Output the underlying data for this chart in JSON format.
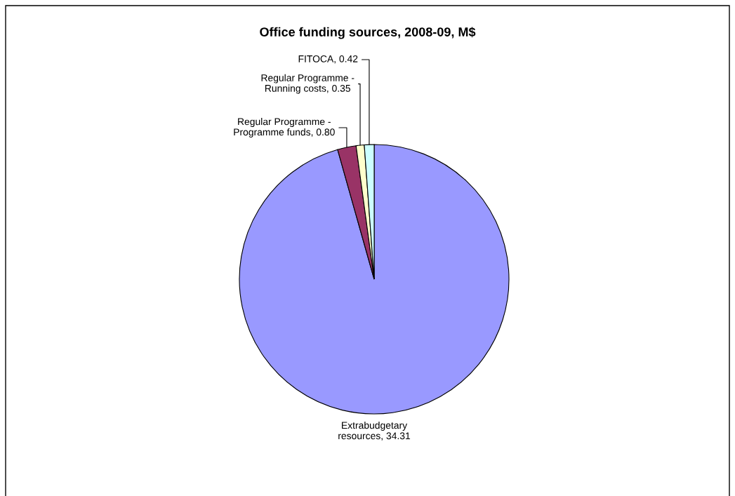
{
  "chart_data": {
    "type": "pie",
    "title": "Office funding sources, 2008-09, M$",
    "categories": [
      "Extrabudgetary\nresources",
      "Regular Programme -\nProgramme funds",
      "Regular Programme -\nRunning costs",
      "FITOCA"
    ],
    "values": [
      34.31,
      0.8,
      0.35,
      0.42
    ],
    "value_labels": [
      "34.31",
      "0.80",
      "0.35",
      "0.42"
    ],
    "colors": [
      "#9999ff",
      "#993366",
      "#ffffcc",
      "#ccffff"
    ],
    "legend": false
  }
}
